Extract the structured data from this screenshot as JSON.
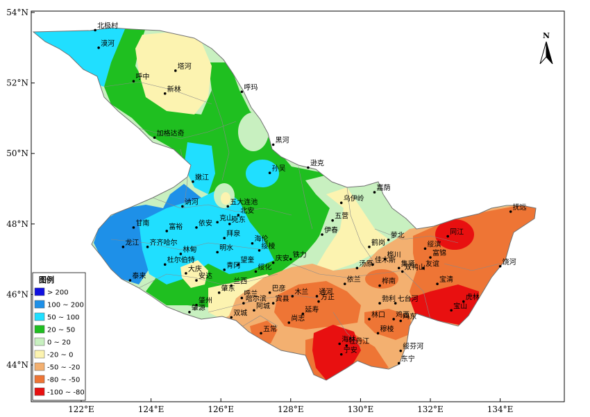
{
  "axes": {
    "lon_labels": [
      "122°E",
      "124°E",
      "126°E",
      "128°E",
      "130°E",
      "132°E",
      "134°E"
    ],
    "lat_labels": [
      "54°N",
      "52°N",
      "50°N",
      "48°N",
      "46°N",
      "44°N"
    ]
  },
  "north_arrow": {
    "label": "N"
  },
  "legend": {
    "title": "图例",
    "items": [
      {
        "label": "> 200",
        "color": "#1010e0"
      },
      {
        "label": "100 ~ 200",
        "color": "#1e90e8"
      },
      {
        "label": "50 ~ 100",
        "color": "#20dfff"
      },
      {
        "label": "20 ~ 50",
        "color": "#1fbf20"
      },
      {
        "label": "0 ~ 20",
        "color": "#c8f0c0"
      },
      {
        "label": "-20 ~ 0",
        "color": "#fcf3b0"
      },
      {
        "label": "-50 ~ -20",
        "color": "#f3b070"
      },
      {
        "label": "-80 ~ -50",
        "color": "#ee7535"
      },
      {
        "label": "-100 ~ -80",
        "color": "#e81010"
      }
    ]
  },
  "cities": [
    {
      "name": "北极村",
      "lon": 122.4,
      "lat": 53.5
    },
    {
      "name": "漠河",
      "lon": 122.5,
      "lat": 53.0
    },
    {
      "name": "塔河",
      "lon": 124.7,
      "lat": 52.35
    },
    {
      "name": "呼中",
      "lon": 123.5,
      "lat": 52.05
    },
    {
      "name": "新林",
      "lon": 124.4,
      "lat": 51.7
    },
    {
      "name": "呼玛",
      "lon": 126.6,
      "lat": 51.75
    },
    {
      "name": "加格达奇",
      "lon": 124.1,
      "lat": 50.45
    },
    {
      "name": "黑河",
      "lon": 127.5,
      "lat": 50.25
    },
    {
      "name": "嫩江",
      "lon": 125.2,
      "lat": 49.2
    },
    {
      "name": "孙吴",
      "lon": 127.4,
      "lat": 49.45
    },
    {
      "name": "逊克",
      "lon": 128.5,
      "lat": 49.6
    },
    {
      "name": "乌伊岭",
      "lon": 129.45,
      "lat": 48.6
    },
    {
      "name": "嘉荫",
      "lon": 130.4,
      "lat": 48.9
    },
    {
      "name": "五大连池",
      "lon": 126.2,
      "lat": 48.5
    },
    {
      "name": "北安",
      "lon": 126.5,
      "lat": 48.25
    },
    {
      "name": "讷河",
      "lon": 124.9,
      "lat": 48.5
    },
    {
      "name": "克山",
      "lon": 125.9,
      "lat": 48.05
    },
    {
      "name": "克东",
      "lon": 126.25,
      "lat": 48.0
    },
    {
      "name": "五营",
      "lon": 129.2,
      "lat": 48.1
    },
    {
      "name": "抚远",
      "lon": 134.3,
      "lat": 48.35
    },
    {
      "name": "甘南",
      "lon": 123.5,
      "lat": 47.9
    },
    {
      "name": "富裕",
      "lon": 124.45,
      "lat": 47.8
    },
    {
      "name": "依安",
      "lon": 125.3,
      "lat": 47.9
    },
    {
      "name": "拜泉",
      "lon": 126.1,
      "lat": 47.6
    },
    {
      "name": "伊春",
      "lon": 128.9,
      "lat": 47.7
    },
    {
      "name": "萝北",
      "lon": 130.8,
      "lat": 47.55
    },
    {
      "name": "同江",
      "lon": 132.5,
      "lat": 47.65
    },
    {
      "name": "龙江",
      "lon": 123.2,
      "lat": 47.35
    },
    {
      "name": "齐齐哈尔",
      "lon": 123.9,
      "lat": 47.35
    },
    {
      "name": "林甸",
      "lon": 124.85,
      "lat": 47.15
    },
    {
      "name": "明水",
      "lon": 125.9,
      "lat": 47.2
    },
    {
      "name": "海伦",
      "lon": 126.9,
      "lat": 47.45
    },
    {
      "name": "绥棱",
      "lon": 127.1,
      "lat": 47.25
    },
    {
      "name": "鹤岗",
      "lon": 130.25,
      "lat": 47.35
    },
    {
      "name": "绥滨",
      "lon": 131.85,
      "lat": 47.3
    },
    {
      "name": "富锦",
      "lon": 132.0,
      "lat": 47.05
    },
    {
      "name": "杜尔伯特",
      "lon": 124.4,
      "lat": 46.85
    },
    {
      "name": "青冈",
      "lon": 126.1,
      "lat": 46.7
    },
    {
      "name": "望奎",
      "lon": 126.5,
      "lat": 46.85
    },
    {
      "name": "庆安",
      "lon": 127.5,
      "lat": 46.9
    },
    {
      "name": "铁力",
      "lon": 128.0,
      "lat": 47.0
    },
    {
      "name": "汤原",
      "lon": 129.9,
      "lat": 46.75
    },
    {
      "name": "佳木斯",
      "lon": 130.35,
      "lat": 46.85
    },
    {
      "name": "桦川",
      "lon": 130.7,
      "lat": 47.0
    },
    {
      "name": "集贤",
      "lon": 131.1,
      "lat": 46.75
    },
    {
      "name": "双鸭山",
      "lon": 131.2,
      "lat": 46.65
    },
    {
      "name": "友谊",
      "lon": 131.8,
      "lat": 46.75
    },
    {
      "name": "饶河",
      "lon": 134.0,
      "lat": 46.8
    },
    {
      "name": "大庆",
      "lon": 125.0,
      "lat": 46.6
    },
    {
      "name": "安达",
      "lon": 125.3,
      "lat": 46.4
    },
    {
      "name": "绥化",
      "lon": 127.0,
      "lat": 46.65
    },
    {
      "name": "泰来",
      "lon": 123.4,
      "lat": 46.4
    },
    {
      "name": "兰西",
      "lon": 126.3,
      "lat": 46.25
    },
    {
      "name": "肇东",
      "lon": 125.95,
      "lat": 46.05
    },
    {
      "name": "呼兰",
      "lon": 126.6,
      "lat": 45.9
    },
    {
      "name": "巴彦",
      "lon": 127.4,
      "lat": 46.05
    },
    {
      "name": "木兰",
      "lon": 128.05,
      "lat": 45.95
    },
    {
      "name": "通河",
      "lon": 128.75,
      "lat": 45.95
    },
    {
      "name": "依兰",
      "lon": 129.55,
      "lat": 46.3
    },
    {
      "name": "桦南",
      "lon": 130.55,
      "lat": 46.25
    },
    {
      "name": "宝清",
      "lon": 132.2,
      "lat": 46.3
    },
    {
      "name": "哈尔滨",
      "lon": 126.65,
      "lat": 45.75
    },
    {
      "name": "宾县",
      "lon": 127.5,
      "lat": 45.75
    },
    {
      "name": "方正",
      "lon": 128.8,
      "lat": 45.8
    },
    {
      "name": "勃利",
      "lon": 130.55,
      "lat": 45.75
    },
    {
      "name": "七台河",
      "lon": 131.0,
      "lat": 45.75
    },
    {
      "name": "肇州",
      "lon": 125.3,
      "lat": 45.7
    },
    {
      "name": "阿城",
      "lon": 126.95,
      "lat": 45.55
    },
    {
      "name": "延寿",
      "lon": 128.35,
      "lat": 45.45
    },
    {
      "name": "宝山",
      "lon": 132.6,
      "lat": 45.55
    },
    {
      "name": "虎林",
      "lon": 132.95,
      "lat": 45.8
    },
    {
      "name": "肇源",
      "lon": 125.1,
      "lat": 45.5
    },
    {
      "name": "双城",
      "lon": 126.3,
      "lat": 45.35
    },
    {
      "name": "尚志",
      "lon": 127.95,
      "lat": 45.2
    },
    {
      "name": "林口",
      "lon": 130.25,
      "lat": 45.3
    },
    {
      "name": "鸡西",
      "lon": 130.95,
      "lat": 45.3
    },
    {
      "name": "鸡东",
      "lon": 131.15,
      "lat": 45.25
    },
    {
      "name": "穆棱",
      "lon": 130.5,
      "lat": 44.9
    },
    {
      "name": "五常",
      "lon": 127.15,
      "lat": 44.9
    },
    {
      "name": "海林",
      "lon": 129.4,
      "lat": 44.6
    },
    {
      "name": "牡丹江",
      "lon": 129.6,
      "lat": 44.55
    },
    {
      "name": "绥芬河",
      "lon": 131.15,
      "lat": 44.4
    },
    {
      "name": "宁安",
      "lon": 129.45,
      "lat": 44.3
    },
    {
      "name": "东宁",
      "lon": 131.1,
      "lat": 44.05
    }
  ]
}
